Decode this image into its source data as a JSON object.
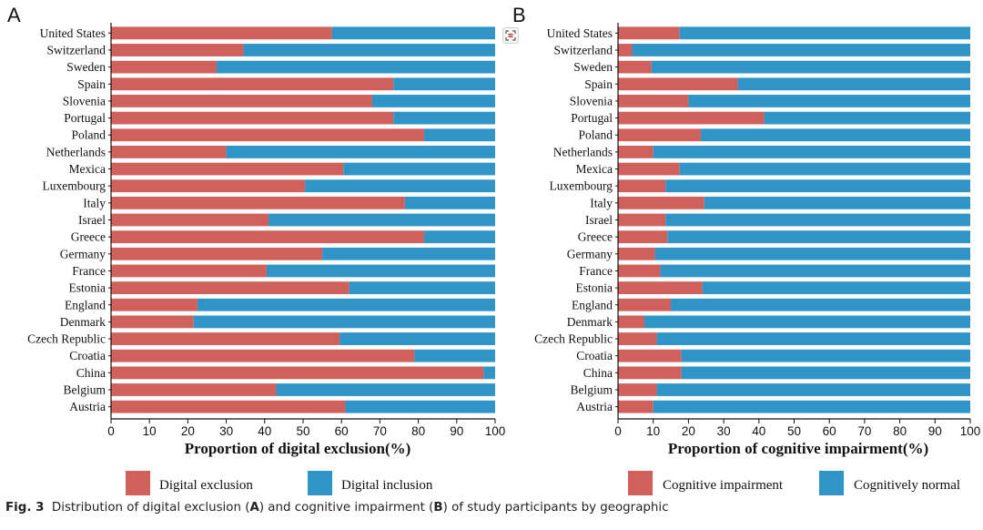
{
  "colors": {
    "red": "#d0605b",
    "blue": "#2f95c7",
    "axis": "#111111"
  },
  "x_ticks": [
    "0",
    "10",
    "20",
    "30",
    "40",
    "50",
    "60",
    "70",
    "80",
    "90",
    "100"
  ],
  "chart_data": [
    {
      "type": "bar",
      "orientation": "horizontal",
      "stacked": true,
      "panel": "A",
      "xlabel": "Proportion of digital exclusion(%)",
      "xlim": [
        0,
        100
      ],
      "categories": [
        "United States",
        "Switzerland",
        "Sweden",
        "Spain",
        "Slovenia",
        "Portugal",
        "Poland",
        "Netherlands",
        "Mexica",
        "Luxembourg",
        "Italy",
        "Israel",
        "Greece",
        "Germany",
        "France",
        "Estonia",
        "England",
        "Denmark",
        "Czech Republic",
        "Croatia",
        "China",
        "Belgium",
        "Austria"
      ],
      "series": [
        {
          "name": "Digital exclusion",
          "color": "#d0605b",
          "values": [
            57.5,
            34.5,
            27.5,
            73.5,
            68.0,
            73.5,
            81.5,
            30.0,
            60.5,
            50.5,
            76.5,
            41.0,
            81.5,
            55.0,
            40.5,
            62.0,
            22.5,
            21.5,
            59.5,
            79.0,
            97.0,
            43.0,
            61.0
          ]
        },
        {
          "name": "Digital inclusion",
          "color": "#2f95c7",
          "values": [
            42.5,
            65.5,
            72.5,
            26.5,
            32.0,
            26.5,
            18.5,
            70.0,
            39.5,
            49.5,
            23.5,
            59.0,
            18.5,
            45.0,
            59.5,
            38.0,
            77.5,
            78.5,
            40.5,
            21.0,
            3.0,
            57.0,
            39.0
          ]
        }
      ]
    },
    {
      "type": "bar",
      "orientation": "horizontal",
      "stacked": true,
      "panel": "B",
      "xlabel": "Proportion of cognitive impairment(%)",
      "xlim": [
        0,
        100
      ],
      "categories": [
        "United States",
        "Switzerland",
        "Sweden",
        "Spain",
        "Slovenia",
        "Portugal",
        "Poland",
        "Netherlands",
        "Mexica",
        "Luxembourg",
        "Italy",
        "Israel",
        "Greece",
        "Germany",
        "France",
        "Estonia",
        "England",
        "Denmark",
        "Czech Republic",
        "Croatia",
        "China",
        "Belgium",
        "Austria"
      ],
      "series": [
        {
          "name": "Cognitive impairment",
          "color": "#d0605b",
          "values": [
            17.5,
            4.0,
            9.5,
            34.0,
            20.0,
            41.5,
            23.5,
            10.0,
            17.5,
            13.5,
            24.5,
            13.5,
            14.0,
            10.5,
            12.0,
            24.0,
            15.0,
            7.5,
            11.0,
            18.0,
            18.0,
            11.0,
            10.0
          ]
        },
        {
          "name": "Cognitively normal",
          "color": "#2f95c7",
          "values": [
            82.5,
            96.0,
            90.5,
            66.0,
            80.0,
            58.5,
            76.5,
            90.0,
            82.5,
            86.5,
            75.5,
            86.5,
            86.0,
            89.5,
            88.0,
            76.0,
            85.0,
            92.5,
            89.0,
            82.0,
            82.0,
            89.0,
            90.0
          ]
        }
      ]
    }
  ],
  "panel_a": {
    "letter": "A"
  },
  "panel_b": {
    "letter": "B"
  },
  "legend_a": {
    "items": [
      "Digital exclusion",
      "Digital inclusion"
    ]
  },
  "legend_b": {
    "items": [
      "Cognitive impairment",
      "Cognitively normal"
    ]
  },
  "caption": {
    "fig": "Fig. 3",
    "t1": "Distribution of digital exclusion (",
    "a": "A",
    "t2": ") and cognitive impairment (",
    "b": "B",
    "t3": ") of study participants by geographic"
  },
  "toolbar": {
    "icon": "scan-icon"
  }
}
